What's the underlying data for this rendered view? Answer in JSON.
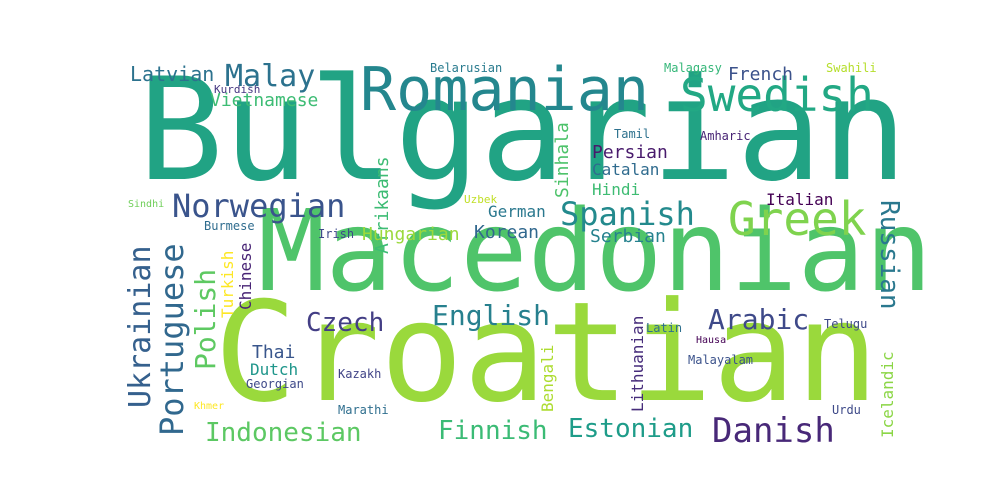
{
  "words": [
    {
      "text": "Bulgarian",
      "color": "#21a384"
    },
    {
      "text": "Macedonian",
      "color": "#4fc46a"
    },
    {
      "text": "Croatian",
      "color": "#9ad93c"
    },
    {
      "text": "Romanian",
      "color": "#24878e"
    },
    {
      "text": "Swedish",
      "color": "#22a884"
    },
    {
      "text": "Greek",
      "color": "#7fd34e"
    },
    {
      "text": "Spanish",
      "color": "#238a8d"
    },
    {
      "text": "Norwegian",
      "color": "#3a548c"
    },
    {
      "text": "Malay",
      "color": "#2c728e"
    },
    {
      "text": "Latvian",
      "color": "#2c728e"
    },
    {
      "text": "French",
      "color": "#3b528b"
    },
    {
      "text": "Vietnamese",
      "color": "#3dbc74"
    },
    {
      "text": "Czech",
      "color": "#433e85"
    },
    {
      "text": "English",
      "color": "#27808e"
    },
    {
      "text": "Arabic",
      "color": "#3e4989"
    },
    {
      "text": "Danish",
      "color": "#482878"
    },
    {
      "text": "Estonian",
      "color": "#1e9c89"
    },
    {
      "text": "Finnish",
      "color": "#3bbb75"
    },
    {
      "text": "Indonesian",
      "color": "#5cc863"
    },
    {
      "text": "Ukrainian",
      "color": "#35608d"
    },
    {
      "text": "Portuguese",
      "color": "#31688e"
    },
    {
      "text": "Polish",
      "color": "#5ec962"
    },
    {
      "text": "Russian",
      "color": "#2a788e"
    },
    {
      "text": "Afrikaans",
      "color": "#3dbc74"
    },
    {
      "text": "Sinhala",
      "color": "#4ec36b"
    },
    {
      "text": "German",
      "color": "#2a788e"
    },
    {
      "text": "Hungarian",
      "color": "#9bd93c"
    },
    {
      "text": "Korean",
      "color": "#31688e"
    },
    {
      "text": "Serbian",
      "color": "#26828e"
    },
    {
      "text": "Persian",
      "color": "#481a6c"
    },
    {
      "text": "Catalan",
      "color": "#2f6b8e"
    },
    {
      "text": "Hindi",
      "color": "#3fbc73"
    },
    {
      "text": "Tamil",
      "color": "#2d718e"
    },
    {
      "text": "Amharic",
      "color": "#482475"
    },
    {
      "text": "Italian",
      "color": "#440154"
    },
    {
      "text": "Thai",
      "color": "#39568c"
    },
    {
      "text": "Dutch",
      "color": "#1f968b"
    },
    {
      "text": "Georgian",
      "color": "#3e4989"
    },
    {
      "text": "Kazakh",
      "color": "#414487"
    },
    {
      "text": "Marathi",
      "color": "#2e6e8e"
    },
    {
      "text": "Bengali",
      "color": "#addc30"
    },
    {
      "text": "Lithuanian",
      "color": "#472d7b"
    },
    {
      "text": "Latin",
      "color": "#2e6f8e"
    },
    {
      "text": "Hausa",
      "color": "#440154"
    },
    {
      "text": "Malayalam",
      "color": "#3b528b"
    },
    {
      "text": "Telugu",
      "color": "#3e4989"
    },
    {
      "text": "Icelandic",
      "color": "#8bd646"
    },
    {
      "text": "Urdu",
      "color": "#3e4a89"
    },
    {
      "text": "Turkish",
      "color": "#fde725"
    },
    {
      "text": "Chinese",
      "color": "#482475"
    },
    {
      "text": "Irish",
      "color": "#3e4989"
    },
    {
      "text": "Burmese",
      "color": "#2f6c8e"
    },
    {
      "text": "Sindhi",
      "color": "#6ece58"
    },
    {
      "text": "Uzbek",
      "color": "#c0df25"
    },
    {
      "text": "Khmer",
      "color": "#fde725"
    },
    {
      "text": "Kurdish",
      "color": "#453781"
    },
    {
      "text": "Belarusian",
      "color": "#297b8e"
    },
    {
      "text": "Malagasy",
      "color": "#35b779"
    },
    {
      "text": "Swahili",
      "color": "#b5de2b"
    }
  ]
}
